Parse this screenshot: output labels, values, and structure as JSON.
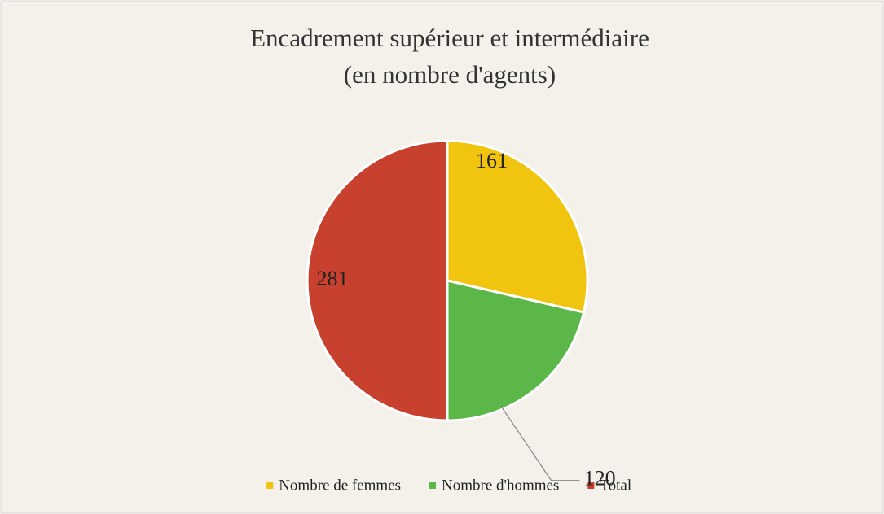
{
  "chart_data": {
    "type": "pie",
    "title": [
      "Encadrement supérieur et intermédiaire",
      "(en nombre d'agents)"
    ],
    "categories": [
      "Nombre de femmes",
      "Nombre d'hommes",
      "Total"
    ],
    "values": [
      161,
      120,
      281
    ],
    "colors": [
      "#f1c40f",
      "#5bb848",
      "#c8412f"
    ],
    "legend": "bottom"
  }
}
